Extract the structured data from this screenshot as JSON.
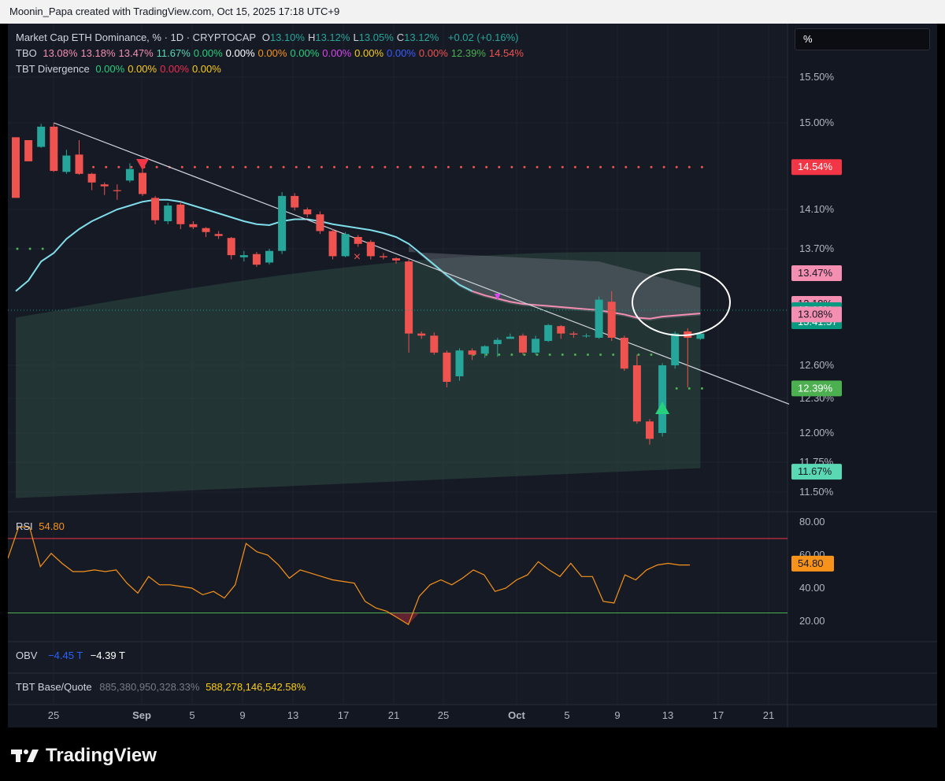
{
  "header": {
    "credit": "Moonin_Papa created with TradingView.com, Oct 15, 2025 17:18 UTC+9"
  },
  "colors": {
    "up": "#26a69a",
    "down": "#ef5350",
    "ma": "#80deea",
    "pink": "#f48fb1",
    "rsi": "#f7931a",
    "trend": "#d1d4dc"
  },
  "legend": {
    "symbol": "Market Cap ETH Dominance, % · 1D · CRYPTOCAP",
    "ohlc": [
      {
        "label": "O",
        "value": "13.10%"
      },
      {
        "label": "H",
        "value": "13.12%"
      },
      {
        "label": "L",
        "value": "13.05%"
      },
      {
        "label": "C",
        "value": "13.12%"
      }
    ],
    "change": "+0.02 (+0.16%)",
    "tbo": {
      "name": "TBO",
      "values": [
        {
          "v": "13.08%",
          "color": "#f48fb1"
        },
        {
          "v": "13.18%",
          "color": "#f48fb1"
        },
        {
          "v": "13.47%",
          "color": "#f48fb1"
        },
        {
          "v": "11.67%",
          "color": "#5ad8b4"
        },
        {
          "v": "0.00%",
          "color": "#26d07c"
        },
        {
          "v": "0.00%",
          "color": "#ffffff"
        },
        {
          "v": "0.00%",
          "color": "#f7931a"
        },
        {
          "v": "0.00%",
          "color": "#26d07c"
        },
        {
          "v": "0.00%",
          "color": "#d946ef"
        },
        {
          "v": "0.00%",
          "color": "#facc15"
        },
        {
          "v": "0.00%",
          "color": "#3b5bff"
        },
        {
          "v": "0.00%",
          "color": "#ef5350"
        },
        {
          "v": "12.39%",
          "color": "#4caf50"
        },
        {
          "v": "14.54%",
          "color": "#ef5350"
        }
      ]
    },
    "tbt_divergence": {
      "name": "TBT Divergence",
      "values": [
        {
          "v": "0.00%",
          "color": "#26d07c"
        },
        {
          "v": "0.00%",
          "color": "#facc15"
        },
        {
          "v": "0.00%",
          "color": "#ef2c4f"
        },
        {
          "v": "0.00%",
          "color": "#facc15"
        }
      ]
    }
  },
  "unit_box": "%",
  "rsi": {
    "label": "RSI",
    "value": "54.80",
    "ticks": [
      "80.00",
      "60.00",
      "40.00",
      "20.00"
    ],
    "overbought": 70,
    "oversold": 25,
    "ylim": [
      10,
      80
    ]
  },
  "obv": {
    "label": "OBV",
    "value1": "−4.45 T",
    "value2": "−4.39 T"
  },
  "tbt_bq": {
    "label": "TBT Base/Quote",
    "value1": "885,380,950,328.33%",
    "value2": "588,278,146,542.58%"
  },
  "footer": {
    "brand": "TradingView"
  },
  "chart_data": {
    "type": "candlestick",
    "x_ticks": [
      "25",
      "Sep",
      "5",
      "9",
      "13",
      "17",
      "21",
      "25",
      "Oct",
      "5",
      "9",
      "13",
      "17",
      "21"
    ],
    "y_ticks": [
      "15.50%",
      "15.00%",
      "14.10%",
      "13.70%",
      "12.60%",
      "12.30%",
      "12.00%",
      "11.75%",
      "11.50%"
    ],
    "price_labels": [
      {
        "text": "14.54%",
        "value": 14.54,
        "bg": "#f23645",
        "fg": "#ffffff"
      },
      {
        "text": "13.47%",
        "value": 13.47,
        "bg": "#f48fb1",
        "fg": "#131722"
      },
      {
        "text": "13.18%",
        "value": 13.18,
        "bg": "#f48fb1",
        "fg": "#131722"
      },
      {
        "text": "13.12%",
        "sub": "15:41:57",
        "value": 13.12,
        "bg": "#089981",
        "fg": "#ffffff"
      },
      {
        "text": "13.08%",
        "value": 13.08,
        "bg": "#f48fb1",
        "fg": "#131722"
      },
      {
        "text": "12.39%",
        "value": 12.39,
        "bg": "#4caf50",
        "fg": "#ffffff"
      },
      {
        "text": "11.67%",
        "value": 11.67,
        "bg": "#5ad8b4",
        "fg": "#131722"
      }
    ],
    "candles": [
      [
        14.85,
        14.22,
        14.28,
        14.85
      ],
      [
        14.82,
        14.6,
        14.61,
        14.62
      ],
      [
        14.75,
        14.96,
        14.99,
        14.74
      ],
      [
        14.96,
        14.5,
        15.0,
        14.49
      ],
      [
        14.49,
        14.66,
        14.72,
        14.47
      ],
      [
        14.67,
        14.47,
        14.82,
        14.46
      ],
      [
        14.47,
        14.38,
        14.48,
        14.3
      ],
      [
        14.36,
        14.34,
        14.38,
        14.25
      ],
      [
        14.3,
        14.29,
        14.36,
        14.2
      ],
      [
        14.4,
        14.52,
        14.58,
        14.38
      ],
      [
        14.48,
        14.26,
        14.58,
        14.24
      ],
      [
        14.22,
        13.99,
        14.24,
        13.95
      ],
      [
        13.98,
        14.14,
        14.17,
        13.95
      ],
      [
        14.15,
        13.95,
        14.18,
        13.9
      ],
      [
        13.95,
        13.92,
        13.98,
        13.9
      ],
      [
        13.91,
        13.87,
        13.92,
        13.82
      ],
      [
        13.85,
        13.83,
        13.88,
        13.8
      ],
      [
        13.81,
        13.64,
        13.82,
        13.6
      ],
      [
        13.62,
        13.64,
        13.68,
        13.58
      ],
      [
        13.65,
        13.55,
        13.67,
        13.53
      ],
      [
        13.57,
        13.68,
        13.7,
        13.55
      ],
      [
        13.68,
        14.24,
        14.28,
        13.65
      ],
      [
        14.24,
        14.12,
        14.27,
        14.09
      ],
      [
        14.1,
        14.05,
        14.12,
        14.02
      ],
      [
        14.05,
        13.88,
        14.08,
        13.85
      ],
      [
        13.88,
        13.63,
        13.9,
        13.6
      ],
      [
        13.63,
        13.85,
        13.87,
        13.62
      ],
      [
        13.82,
        13.75,
        13.84,
        13.72
      ],
      [
        13.77,
        13.63,
        13.79,
        13.6
      ],
      [
        13.63,
        13.62,
        13.66,
        13.6
      ],
      [
        13.61,
        13.59,
        13.62,
        13.56
      ],
      [
        13.58,
        12.9,
        13.6,
        12.72
      ],
      [
        12.9,
        12.88,
        12.92,
        12.85
      ],
      [
        12.88,
        12.72,
        12.91,
        12.7
      ],
      [
        12.72,
        12.45,
        12.74,
        12.4
      ],
      [
        12.5,
        12.74,
        12.76,
        12.46
      ],
      [
        12.74,
        12.7,
        12.76,
        12.65
      ],
      [
        12.71,
        12.78,
        12.79,
        12.67
      ],
      [
        12.8,
        12.84,
        12.86,
        12.68
      ],
      [
        12.85,
        12.87,
        12.9,
        12.85
      ],
      [
        12.88,
        12.72,
        12.9,
        12.7
      ],
      [
        12.72,
        12.85,
        12.88,
        12.7
      ],
      [
        12.83,
        12.98,
        12.99,
        12.82
      ],
      [
        12.97,
        12.9,
        12.98,
        12.85
      ],
      [
        12.9,
        12.89,
        12.92,
        12.86
      ],
      [
        12.88,
        12.88,
        12.9,
        12.86
      ],
      [
        12.86,
        13.22,
        13.25,
        12.85
      ],
      [
        13.2,
        12.86,
        13.3,
        12.83
      ],
      [
        12.86,
        12.57,
        12.88,
        12.55
      ],
      [
        12.6,
        12.1,
        12.7,
        12.08
      ],
      [
        12.1,
        11.95,
        12.12,
        11.9
      ],
      [
        12.0,
        12.6,
        12.62,
        11.97
      ],
      [
        12.6,
        12.9,
        12.92,
        12.57
      ],
      [
        12.92,
        12.86,
        12.95,
        12.4
      ],
      [
        12.85,
        12.9,
        12.92,
        12.84
      ]
    ],
    "ma_line": [
      13.3,
      13.4,
      13.58,
      13.66,
      13.8,
      13.9,
      13.98,
      14.04,
      14.1,
      14.14,
      14.18,
      14.2,
      14.2,
      14.18,
      14.14,
      14.1,
      14.06,
      14.02,
      13.98,
      13.95,
      13.94,
      13.98,
      14.0,
      14.0,
      13.98,
      13.95,
      13.93,
      13.91,
      13.89,
      13.86,
      13.82,
      13.75,
      13.65,
      13.55,
      13.45,
      13.36,
      13.3,
      13.26,
      13.23,
      13.2,
      13.18,
      13.17,
      13.16,
      13.15,
      13.14,
      13.13,
      13.12,
      13.1,
      13.08,
      13.05,
      13.04,
      13.06,
      13.07,
      13.08,
      13.09
    ],
    "trendline": [
      [
        3,
        15.0
      ],
      [
        61,
        12.25
      ]
    ],
    "resistance_dots": {
      "value": 14.54,
      "from": 5,
      "to": 54
    },
    "support_dots_1": {
      "value": 13.7,
      "from": 0,
      "to": 2
    },
    "support_dots_2": {
      "value": 12.7,
      "from": 36,
      "to": 50
    },
    "support_dots_3": {
      "value": 12.39,
      "from": 51,
      "to": 54
    },
    "rsi_values": [
      58,
      77,
      77,
      53,
      61,
      55,
      50,
      50,
      51,
      50,
      51,
      43,
      37,
      47,
      42,
      42,
      41,
      40,
      36,
      38,
      34,
      42,
      67,
      62,
      60,
      54,
      46,
      51,
      49,
      47,
      45,
      44,
      43,
      32,
      28,
      26,
      22,
      18,
      35,
      42,
      45,
      42,
      46,
      51,
      48,
      38,
      40,
      45,
      48,
      56,
      51,
      47,
      55,
      47,
      47,
      32,
      31,
      48,
      45,
      51,
      54,
      55,
      54,
      54
    ],
    "rsi_ylim": [
      10,
      80
    ]
  }
}
